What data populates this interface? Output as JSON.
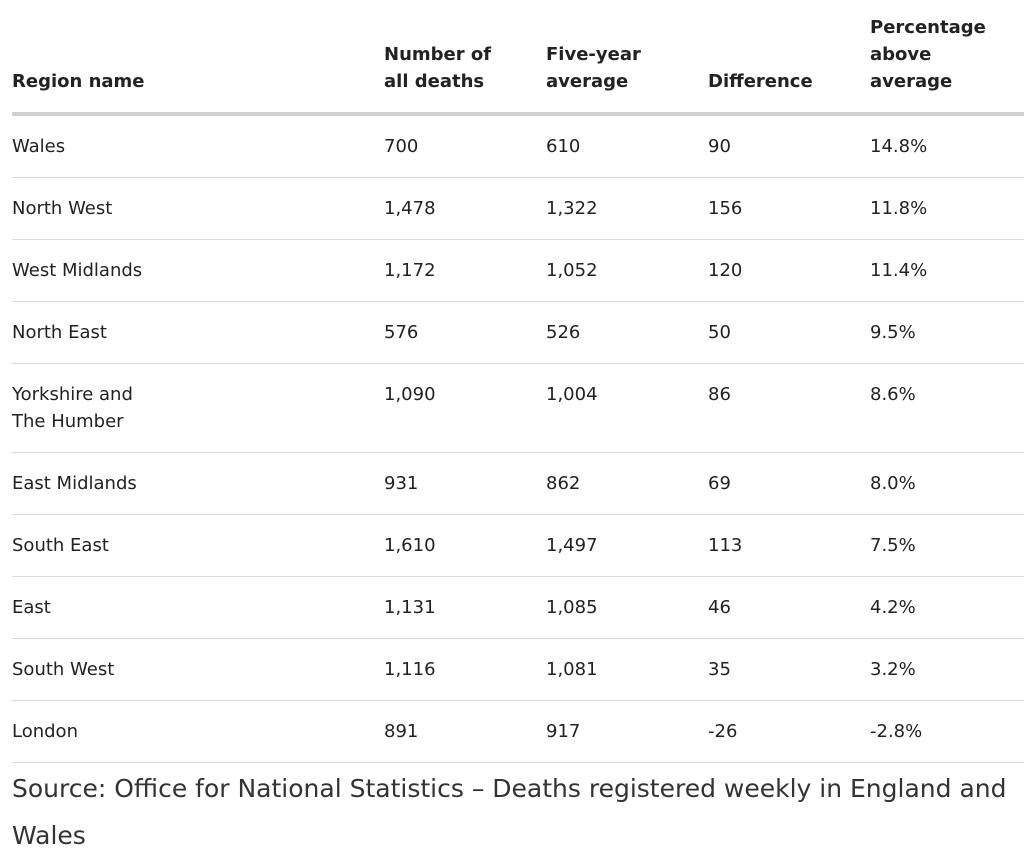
{
  "table": {
    "headers": [
      "Region name",
      "Number of all deaths",
      "Five-year average",
      "Difference",
      "Percentage above average"
    ],
    "rows": [
      [
        "Wales",
        "700",
        "610",
        "90",
        "14.8%"
      ],
      [
        "North West",
        "1,478",
        "1,322",
        "156",
        "11.8%"
      ],
      [
        "West Midlands",
        "1,172",
        "1,052",
        "120",
        "11.4%"
      ],
      [
        "North East",
        "576",
        "526",
        "50",
        "9.5%"
      ],
      [
        "Yorkshire and The Humber",
        "1,090",
        "1,004",
        "86",
        "8.6%"
      ],
      [
        "East Midlands",
        "931",
        "862",
        "69",
        "8.0%"
      ],
      [
        "South East",
        "1,610",
        "1,497",
        "113",
        "7.5%"
      ],
      [
        "East",
        "1,131",
        "1,085",
        "46",
        "4.2%"
      ],
      [
        "South West",
        "1,116",
        "1,081",
        "35",
        "3.2%"
      ],
      [
        "London",
        "891",
        "917",
        "-26",
        "-2.8%"
      ]
    ]
  },
  "source": "Source: Office for National Statistics – Deaths registered weekly in England and Wales"
}
